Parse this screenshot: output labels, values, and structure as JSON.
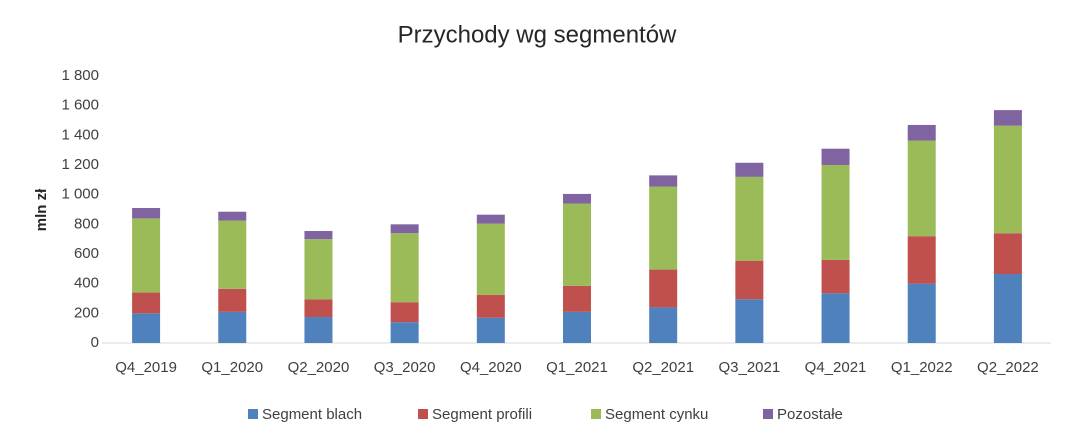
{
  "chart_data": {
    "type": "stacked_bar",
    "title": "Przychody wg segmentów",
    "y_label": "mln zł",
    "categories": [
      "Q4_2019",
      "Q1_2020",
      "Q2_2020",
      "Q3_2020",
      "Q4_2020",
      "Q1_2021",
      "Q2_2021",
      "Q3_2021",
      "Q4_2021",
      "Q1_2022",
      "Q2_2022"
    ],
    "series": [
      {
        "name": "Segment blach",
        "color": "#4f81bd",
        "values": [
          200,
          210,
          175,
          140,
          170,
          210,
          240,
          295,
          335,
          400,
          465
        ]
      },
      {
        "name": "Segment profili",
        "color": "#c0504d",
        "values": [
          140,
          155,
          120,
          135,
          155,
          175,
          255,
          260,
          225,
          320,
          275
        ]
      },
      {
        "name": "Segment cynku",
        "color": "#9bbb59",
        "values": [
          500,
          460,
          405,
          465,
          480,
          555,
          560,
          565,
          640,
          645,
          725
        ]
      },
      {
        "name": "Pozostałe",
        "color": "#8064a2",
        "values": [
          70,
          60,
          55,
          60,
          60,
          65,
          75,
          95,
          110,
          105,
          105
        ]
      }
    ],
    "ylim": [
      0,
      1800
    ],
    "yticks": [
      0,
      200,
      400,
      600,
      800,
      {
        "value": 1000,
        "label": "1 000"
      },
      {
        "value": 1200,
        "label": "1 200"
      },
      {
        "value": 1400,
        "label": "1 400"
      },
      {
        "value": 1600,
        "label": "1 600"
      },
      {
        "value": 1800,
        "label": "1 800"
      }
    ],
    "legend": "bottom"
  }
}
